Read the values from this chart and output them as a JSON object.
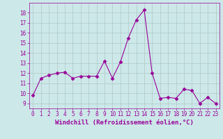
{
  "x": [
    0,
    1,
    2,
    3,
    4,
    5,
    6,
    7,
    8,
    9,
    10,
    11,
    12,
    13,
    14,
    15,
    16,
    17,
    18,
    19,
    20,
    21,
    22,
    23
  ],
  "y": [
    9.8,
    11.5,
    11.8,
    12.0,
    12.1,
    11.5,
    11.7,
    11.7,
    11.7,
    13.2,
    11.5,
    13.1,
    15.5,
    17.3,
    18.3,
    12.0,
    9.5,
    9.6,
    9.5,
    10.4,
    10.3,
    9.0,
    9.6,
    9.0
  ],
  "line_color": "#990099",
  "marker": "D",
  "markersize": 2.5,
  "linewidth": 0.8,
  "xlabel": "Windchill (Refroidissement éolien,°C)",
  "xlabel_fontsize": 6.5,
  "ylim": [
    8.5,
    19.0
  ],
  "xlim": [
    -0.5,
    23.5
  ],
  "yticks": [
    9,
    10,
    11,
    12,
    13,
    14,
    15,
    16,
    17,
    18
  ],
  "xticks": [
    0,
    1,
    2,
    3,
    4,
    5,
    6,
    7,
    8,
    9,
    10,
    11,
    12,
    13,
    14,
    15,
    16,
    17,
    18,
    19,
    20,
    21,
    22,
    23
  ],
  "bg_color": "#cce8e8",
  "grid_color": "#b0c8c8",
  "tick_fontsize": 5.5,
  "tick_color": "#990099"
}
